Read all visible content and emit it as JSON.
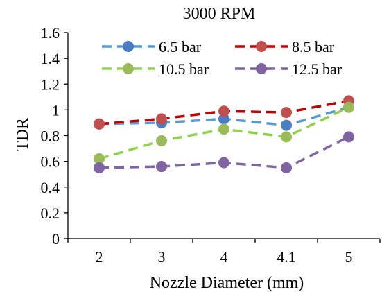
{
  "chart_data": {
    "type": "line",
    "title": "3000 RPM",
    "xlabel": "Nozzle Diameter (mm)",
    "ylabel": "TDR",
    "categories": [
      "2",
      "3",
      "4",
      "4.1",
      "5"
    ],
    "ylim": [
      0,
      1.6
    ],
    "yticks": [
      "0",
      "0.2",
      "0.4",
      "0.6",
      "0.8",
      "1",
      "1.2",
      "1.4",
      "1.6"
    ],
    "grid": false,
    "legend_position": "top",
    "line_style": "dashed",
    "series": [
      {
        "name": "6.5 bar",
        "line_color": "#5B9BD5",
        "marker_color": "#4A7CC4",
        "values": [
          0.89,
          0.9,
          0.93,
          0.88,
          1.02
        ]
      },
      {
        "name": "8.5 bar",
        "line_color": "#C00000",
        "marker_color": "#C0504D",
        "values": [
          0.89,
          0.93,
          0.99,
          0.98,
          1.07
        ]
      },
      {
        "name": "10.5 bar",
        "line_color": "#92D050",
        "marker_color": "#9BBB59",
        "values": [
          0.62,
          0.76,
          0.85,
          0.79,
          1.02
        ]
      },
      {
        "name": "12.5 bar",
        "line_color": "#8064A2",
        "marker_color": "#8064A2",
        "values": [
          0.55,
          0.56,
          0.59,
          0.55,
          0.79
        ]
      }
    ]
  }
}
